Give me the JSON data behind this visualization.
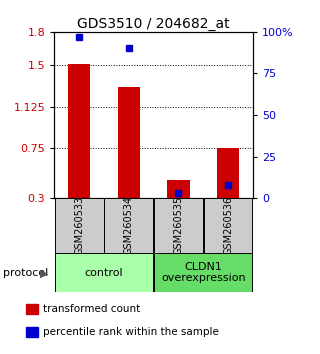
{
  "title": "GDS3510 / 204682_at",
  "samples": [
    "GSM260533",
    "GSM260534",
    "GSM260535",
    "GSM260536"
  ],
  "transformed_counts": [
    1.51,
    1.3,
    0.46,
    0.75
  ],
  "percentile_ranks": [
    97,
    90,
    3,
    8
  ],
  "ylim_left": [
    0.3,
    1.8
  ],
  "ylim_right": [
    0,
    100
  ],
  "left_ticks": [
    0.3,
    0.75,
    1.125,
    1.5,
    1.8
  ],
  "right_ticks": [
    0,
    25,
    50,
    75,
    100
  ],
  "right_tick_labels": [
    "0",
    "25",
    "50",
    "75",
    "100%"
  ],
  "hlines": [
    0.75,
    1.125,
    1.5
  ],
  "bar_color": "#cc0000",
  "percentile_color": "#0000cc",
  "bar_width": 0.45,
  "groups": [
    {
      "label": "control",
      "samples": [
        0,
        1
      ],
      "color": "#aaffaa"
    },
    {
      "label": "CLDN1\noverexpression",
      "samples": [
        2,
        3
      ],
      "color": "#66dd66"
    }
  ],
  "protocol_label": "protocol",
  "legend_items": [
    {
      "color": "#cc0000",
      "label": "transformed count"
    },
    {
      "color": "#0000cc",
      "label": "percentile rank within the sample"
    }
  ],
  "title_fontsize": 10,
  "tick_fontsize": 8,
  "axis_left_color": "#cc0000",
  "axis_right_color": "#0000cc",
  "sample_label_fontsize": 7,
  "group_label_fontsize": 8,
  "legend_fontsize": 7.5
}
